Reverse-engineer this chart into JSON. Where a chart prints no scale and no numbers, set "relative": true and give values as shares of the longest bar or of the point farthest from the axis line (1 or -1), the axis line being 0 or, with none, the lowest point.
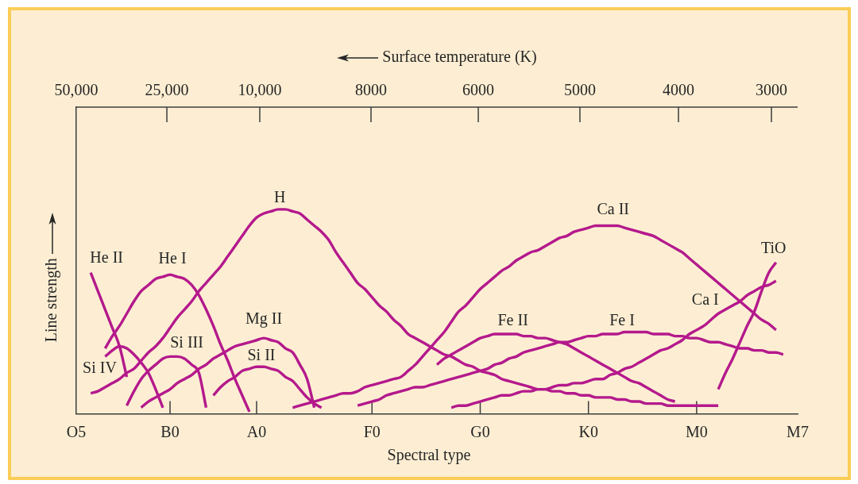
{
  "chart_data": {
    "type": "line",
    "xlabel": "Spectral type",
    "x2label": "Surface temperature (K)",
    "ylabel": "Line strength",
    "relative": true,
    "grid": false,
    "legend": false,
    "marker": "none",
    "line_style": "solid",
    "annotations": [
      "50,000",
      "25,000",
      "10,000",
      "8000",
      "6000",
      "5000",
      "4000",
      "3000"
    ],
    "categories": [
      "O5",
      null,
      null,
      null,
      null,
      null,
      null,
      null,
      null,
      null,
      null,
      null,
      null,
      "B0",
      null,
      null,
      null,
      null,
      null,
      null,
      null,
      null,
      null,
      null,
      null,
      "A0",
      null,
      null,
      null,
      null,
      null,
      null,
      null,
      null,
      null,
      null,
      null,
      null,
      null,
      null,
      null,
      "F0",
      null,
      null,
      null,
      null,
      null,
      null,
      null,
      null,
      null,
      null,
      null,
      null,
      null,
      null,
      "G0",
      null,
      null,
      null,
      null,
      null,
      null,
      null,
      null,
      null,
      null,
      null,
      null,
      null,
      null,
      "K0",
      null,
      null,
      null,
      null,
      null,
      null,
      null,
      null,
      null,
      null,
      null,
      null,
      null,
      null,
      "M0",
      null,
      null,
      null,
      null,
      null,
      null,
      null,
      null,
      null,
      null,
      null,
      null,
      null,
      "M7"
    ],
    "series": [
      {
        "name": "He II",
        "color": "#b4198c",
        "values": [
          null,
          null,
          0.69,
          0.6,
          0.51,
          0.42,
          0.33,
          0.18,
          null,
          null,
          null,
          null,
          null,
          null,
          null,
          null,
          null,
          null,
          null,
          null,
          null,
          null,
          null,
          null,
          null,
          null,
          null,
          null,
          null,
          null,
          null,
          null,
          null,
          null,
          null,
          null,
          null,
          null,
          null,
          null,
          null,
          null,
          null,
          null,
          null,
          null,
          null,
          null,
          null,
          null,
          null,
          null,
          null,
          null,
          null,
          null,
          null,
          null,
          null,
          null,
          null,
          null,
          null,
          null,
          null,
          null,
          null,
          null,
          null,
          null,
          null,
          null,
          null,
          null,
          null,
          null,
          null,
          null,
          null,
          null,
          null,
          null,
          null,
          null,
          null,
          null,
          null,
          null,
          null,
          null,
          null,
          null,
          null,
          null,
          null,
          null,
          null,
          null,
          null,
          null,
          null
        ]
      },
      {
        "name": "He I",
        "color": "#b4198c",
        "values": [
          null,
          null,
          null,
          null,
          0.32,
          0.38,
          0.43,
          0.49,
          0.55,
          0.6,
          0.63,
          0.66,
          0.67,
          0.68,
          0.67,
          0.66,
          0.63,
          0.58,
          0.51,
          0.43,
          0.34,
          0.26,
          0.17,
          0.09,
          0.01,
          null,
          null,
          null,
          null,
          null,
          null,
          null,
          null,
          null,
          null,
          null,
          null,
          null,
          null,
          null,
          null,
          null,
          null,
          null,
          null,
          null,
          null,
          null,
          null,
          null,
          null,
          null,
          null,
          null,
          null,
          null,
          null,
          null,
          null,
          null,
          null,
          null,
          null,
          null,
          null,
          null,
          null,
          null,
          null,
          null,
          null,
          null,
          null,
          null,
          null,
          null,
          null,
          null,
          null,
          null,
          null,
          null,
          null,
          null,
          null,
          null,
          null,
          null,
          null,
          null,
          null,
          null,
          null,
          null,
          null,
          null,
          null,
          null,
          null,
          null,
          null
        ]
      },
      {
        "name": "H",
        "color": "#b4198c",
        "values": [
          null,
          null,
          0.1,
          0.11,
          0.13,
          0.15,
          0.17,
          0.2,
          0.22,
          0.26,
          0.3,
          0.33,
          0.37,
          0.42,
          0.47,
          0.51,
          0.55,
          0.6,
          0.64,
          0.68,
          0.72,
          0.77,
          0.82,
          0.87,
          0.92,
          0.96,
          0.98,
          0.99,
          1.0,
          1.0,
          0.99,
          0.98,
          0.95,
          0.92,
          0.89,
          0.85,
          0.79,
          0.74,
          0.69,
          0.64,
          0.61,
          0.57,
          0.53,
          0.5,
          0.46,
          0.43,
          0.39,
          0.37,
          0.35,
          0.33,
          0.31,
          0.29,
          0.28,
          0.26,
          0.24,
          0.23,
          0.21,
          0.2,
          0.19,
          0.17,
          0.16,
          0.15,
          0.14,
          0.13,
          0.12,
          0.12,
          0.11,
          0.11,
          0.1,
          0.1,
          0.09,
          0.09,
          0.08,
          0.08,
          0.08,
          0.07,
          0.07,
          0.06,
          0.06,
          0.05,
          0.05,
          0.05,
          0.04,
          0.04,
          0.04,
          0.04,
          0.04,
          0.04,
          0.04,
          0.04,
          null,
          null,
          null,
          null,
          null,
          null,
          null,
          null,
          null,
          null,
          null
        ]
      },
      {
        "name": "Si IV",
        "color": "#b4198c",
        "values": [
          null,
          null,
          null,
          null,
          0.28,
          0.31,
          0.33,
          0.32,
          0.29,
          0.25,
          0.2,
          0.12,
          0.03,
          null,
          null,
          null,
          null,
          null,
          null,
          null,
          null,
          null,
          null,
          null,
          null,
          null,
          null,
          null,
          null,
          null,
          null,
          null,
          null,
          null,
          null,
          null,
          null,
          null,
          null,
          null,
          null,
          null,
          null,
          null,
          null,
          null,
          null,
          null,
          null,
          null,
          null,
          null,
          null,
          null,
          null,
          null,
          null,
          null,
          null,
          null,
          null,
          null,
          null,
          null,
          null,
          null,
          null,
          null,
          null,
          null,
          null,
          null,
          null,
          null,
          null,
          null,
          null,
          null,
          null,
          null,
          null,
          null,
          null,
          null,
          null,
          null,
          null,
          null,
          null,
          null,
          null,
          null,
          null,
          null,
          null,
          null,
          null,
          null,
          null,
          null,
          null
        ]
      },
      {
        "name": "Si III",
        "color": "#b4198c",
        "values": [
          null,
          null,
          null,
          null,
          null,
          null,
          null,
          0.04,
          0.11,
          0.17,
          0.21,
          0.24,
          0.27,
          0.28,
          0.28,
          0.27,
          0.24,
          0.2,
          0.03,
          null,
          null,
          null,
          null,
          null,
          null,
          null,
          null,
          null,
          null,
          null,
          null,
          null,
          null,
          null,
          null,
          null,
          null,
          null,
          null,
          null,
          null,
          null,
          null,
          null,
          null,
          null,
          null,
          null,
          null,
          null,
          null,
          null,
          null,
          null,
          null,
          null,
          null,
          null,
          null,
          null,
          null,
          null,
          null,
          null,
          null,
          null,
          null,
          null,
          null,
          null,
          null,
          null,
          null,
          null,
          null,
          null,
          null,
          null,
          null,
          null,
          null,
          null,
          null,
          null,
          null,
          null,
          null,
          null,
          null,
          null,
          null,
          null,
          null,
          null,
          null,
          null,
          null,
          null,
          null,
          null,
          null
        ]
      },
      {
        "name": "Mg II",
        "color": "#b4198c",
        "values": [
          null,
          null,
          null,
          null,
          null,
          null,
          null,
          null,
          null,
          0.03,
          0.06,
          0.08,
          0.1,
          0.12,
          0.15,
          0.17,
          0.19,
          0.22,
          0.24,
          0.27,
          0.29,
          0.31,
          0.33,
          0.34,
          0.35,
          0.36,
          0.37,
          0.36,
          0.35,
          0.32,
          0.3,
          0.24,
          0.17,
          0.03,
          null,
          null,
          null,
          null,
          null,
          null,
          null,
          null,
          null,
          null,
          null,
          null,
          null,
          null,
          null,
          null,
          null,
          null,
          null,
          null,
          null,
          null,
          null,
          null,
          null,
          null,
          null,
          null,
          null,
          null,
          null,
          null,
          null,
          null,
          null,
          null,
          null,
          null,
          null,
          null,
          null,
          null,
          null,
          null,
          null,
          null,
          null,
          null,
          null,
          null,
          null,
          null,
          null,
          null,
          null,
          null,
          null,
          null,
          null,
          null,
          null,
          null,
          null,
          null,
          null,
          null,
          null
        ]
      },
      {
        "name": "Si II",
        "color": "#b4198c",
        "values": [
          null,
          null,
          null,
          null,
          null,
          null,
          null,
          null,
          null,
          null,
          null,
          null,
          null,
          null,
          null,
          null,
          null,
          null,
          null,
          0.09,
          0.13,
          0.16,
          0.18,
          0.21,
          0.22,
          0.23,
          0.23,
          0.22,
          0.21,
          0.18,
          0.16,
          0.12,
          0.08,
          0.05,
          0.03,
          null,
          null,
          null,
          null,
          null,
          null,
          null,
          null,
          null,
          null,
          null,
          null,
          null,
          null,
          null,
          null,
          null,
          null,
          null,
          null,
          null,
          null,
          null,
          null,
          null,
          null,
          null,
          null,
          null,
          null,
          null,
          null,
          null,
          null,
          null,
          null,
          null,
          null,
          null,
          null,
          null,
          null,
          null,
          null,
          null,
          null,
          null,
          null,
          null,
          null,
          null,
          null,
          null,
          null,
          null,
          null,
          null,
          null,
          null,
          null,
          null,
          null,
          null,
          null,
          null,
          null
        ]
      },
      {
        "name": "Fe II",
        "color": "#b4198c",
        "values": [
          null,
          null,
          null,
          null,
          null,
          null,
          null,
          null,
          null,
          null,
          null,
          null,
          null,
          null,
          null,
          null,
          null,
          null,
          null,
          null,
          null,
          null,
          null,
          null,
          null,
          null,
          null,
          null,
          null,
          null,
          null,
          null,
          null,
          null,
          null,
          null,
          null,
          null,
          null,
          null,
          null,
          null,
          null,
          null,
          null,
          null,
          null,
          null,
          null,
          null,
          0.24,
          0.27,
          0.29,
          0.31,
          0.33,
          0.35,
          0.37,
          0.38,
          0.39,
          0.39,
          0.39,
          0.39,
          0.38,
          0.38,
          0.37,
          0.37,
          0.36,
          0.35,
          0.34,
          0.32,
          0.3,
          0.28,
          0.26,
          0.24,
          0.22,
          0.2,
          0.18,
          0.16,
          0.15,
          0.13,
          0.11,
          0.09,
          0.07,
          0.06,
          null,
          null,
          null,
          null,
          null,
          null,
          null,
          null,
          null,
          null,
          null,
          null,
          null,
          null,
          null,
          null,
          null
        ]
      },
      {
        "name": "Ca II",
        "color": "#b4198c",
        "values": [
          null,
          null,
          null,
          null,
          null,
          null,
          null,
          null,
          null,
          null,
          null,
          null,
          null,
          null,
          null,
          null,
          null,
          null,
          null,
          null,
          null,
          null,
          null,
          null,
          null,
          null,
          null,
          null,
          null,
          null,
          0.03,
          0.04,
          0.05,
          0.06,
          0.07,
          0.08,
          0.09,
          0.1,
          0.1,
          0.11,
          0.13,
          0.14,
          0.15,
          0.16,
          0.17,
          0.18,
          0.21,
          0.24,
          0.28,
          0.32,
          0.36,
          0.4,
          0.45,
          0.5,
          0.53,
          0.57,
          0.61,
          0.64,
          0.67,
          0.7,
          0.72,
          0.75,
          0.77,
          0.79,
          0.8,
          0.82,
          0.84,
          0.86,
          0.87,
          0.89,
          0.9,
          0.91,
          0.92,
          0.92,
          0.92,
          0.92,
          0.91,
          0.9,
          0.89,
          0.88,
          0.87,
          0.85,
          0.83,
          0.81,
          0.79,
          0.76,
          0.73,
          0.7,
          0.67,
          0.64,
          0.61,
          0.58,
          0.55,
          0.52,
          0.49,
          0.46,
          0.44,
          0.41,
          null,
          null,
          null
        ]
      },
      {
        "name": "Fe I",
        "color": "#b4198c",
        "values": [
          null,
          null,
          null,
          null,
          null,
          null,
          null,
          null,
          null,
          null,
          null,
          null,
          null,
          null,
          null,
          null,
          null,
          null,
          null,
          null,
          null,
          null,
          null,
          null,
          null,
          null,
          null,
          null,
          null,
          null,
          null,
          null,
          null,
          null,
          null,
          null,
          null,
          null,
          null,
          0.04,
          0.05,
          0.06,
          0.07,
          0.09,
          0.1,
          0.11,
          0.12,
          0.13,
          0.13,
          0.14,
          0.15,
          0.16,
          0.17,
          0.18,
          0.19,
          0.2,
          0.21,
          0.22,
          0.24,
          0.25,
          0.27,
          0.28,
          0.3,
          0.31,
          0.32,
          0.33,
          0.34,
          0.35,
          0.35,
          0.36,
          0.37,
          0.38,
          0.38,
          0.39,
          0.39,
          0.39,
          0.4,
          0.4,
          0.4,
          0.4,
          0.39,
          0.39,
          0.39,
          0.38,
          0.38,
          0.37,
          0.37,
          0.36,
          0.35,
          0.35,
          0.34,
          0.33,
          0.32,
          0.32,
          0.31,
          0.31,
          0.3,
          0.3,
          0.29,
          null,
          null
        ]
      },
      {
        "name": "Ca I",
        "color": "#b4198c",
        "values": [
          null,
          null,
          null,
          null,
          null,
          null,
          null,
          null,
          null,
          null,
          null,
          null,
          null,
          null,
          null,
          null,
          null,
          null,
          null,
          null,
          null,
          null,
          null,
          null,
          null,
          null,
          null,
          null,
          null,
          null,
          null,
          null,
          null,
          null,
          null,
          null,
          null,
          null,
          null,
          null,
          null,
          null,
          null,
          null,
          null,
          null,
          null,
          null,
          null,
          null,
          null,
          null,
          0.03,
          0.04,
          0.04,
          0.05,
          0.06,
          0.07,
          0.08,
          0.09,
          0.09,
          0.1,
          0.11,
          0.11,
          0.12,
          0.12,
          0.13,
          0.14,
          0.14,
          0.15,
          0.15,
          0.16,
          0.17,
          0.17,
          0.19,
          0.2,
          0.22,
          0.23,
          0.25,
          0.27,
          0.29,
          0.31,
          0.32,
          0.34,
          0.36,
          0.39,
          0.41,
          0.43,
          0.46,
          0.49,
          0.51,
          0.53,
          0.55,
          0.58,
          0.6,
          0.62,
          0.63,
          0.65,
          null,
          null,
          null
        ]
      },
      {
        "name": "TiO",
        "color": "#b4198c",
        "values": [
          null,
          null,
          null,
          null,
          null,
          null,
          null,
          null,
          null,
          null,
          null,
          null,
          null,
          null,
          null,
          null,
          null,
          null,
          null,
          null,
          null,
          null,
          null,
          null,
          null,
          null,
          null,
          null,
          null,
          null,
          null,
          null,
          null,
          null,
          null,
          null,
          null,
          null,
          null,
          null,
          null,
          null,
          null,
          null,
          null,
          null,
          null,
          null,
          null,
          null,
          null,
          null,
          null,
          null,
          null,
          null,
          null,
          null,
          null,
          null,
          null,
          null,
          null,
          null,
          null,
          null,
          null,
          null,
          null,
          null,
          null,
          null,
          null,
          null,
          null,
          null,
          null,
          null,
          null,
          null,
          null,
          null,
          null,
          null,
          null,
          null,
          null,
          null,
          null,
          0.12,
          0.2,
          0.27,
          0.35,
          0.43,
          0.5,
          0.6,
          0.69,
          0.74,
          null,
          null,
          null
        ]
      }
    ]
  }
}
